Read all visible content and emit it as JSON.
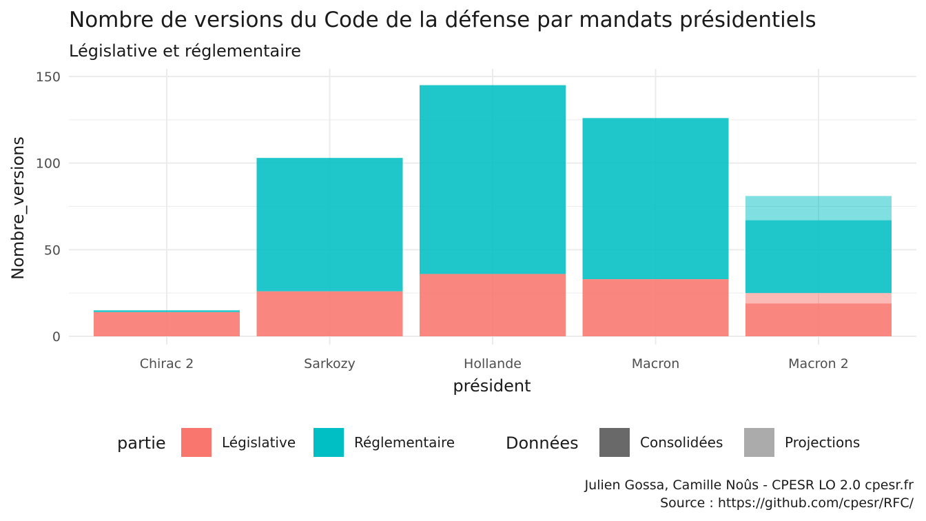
{
  "chart_data": {
    "type": "bar",
    "stacked": true,
    "title": "Nombre de versions du Code de la défense par mandats présidentiels",
    "subtitle": "Législative et réglementaire",
    "xlabel": "président",
    "ylabel": "Nombre_versions",
    "ylim": [
      0,
      150
    ],
    "yticks": [
      0,
      50,
      100,
      150
    ],
    "categories": [
      "Chirac 2",
      "Sarkozy",
      "Hollande",
      "Macron",
      "Macron 2"
    ],
    "series": [
      {
        "name": "Législative",
        "data_type": "Consolidées",
        "color": "#F8766D",
        "values": [
          14,
          26,
          36,
          33,
          19
        ]
      },
      {
        "name": "Législative",
        "data_type": "Projections",
        "color": "#F8766D",
        "values": [
          0,
          0,
          0,
          0,
          6
        ]
      },
      {
        "name": "Réglementaire",
        "data_type": "Consolidées",
        "color": "#00BFC4",
        "values": [
          1,
          77,
          109,
          93,
          42
        ]
      },
      {
        "name": "Réglementaire",
        "data_type": "Projections",
        "color": "#00BFC4",
        "values": [
          0,
          0,
          0,
          0,
          14
        ]
      }
    ],
    "opacity": {
      "Consolidées": 0.88,
      "Projections": 0.5
    },
    "grid": true,
    "legend_position": "bottom",
    "legend": {
      "partie": {
        "title": "partie",
        "items": [
          {
            "label": "Législative",
            "color": "#F8766D"
          },
          {
            "label": "Réglementaire",
            "color": "#00BFC4"
          }
        ]
      },
      "donnees": {
        "title": "Données",
        "items": [
          {
            "label": "Consolidées",
            "color": "#696969"
          },
          {
            "label": "Projections",
            "color": "#ABABAB"
          }
        ]
      }
    },
    "caption": [
      "Julien Gossa, Camille Noûs - CPESR LO 2.0 cpesr.fr",
      "Source : https://github.com/cpesr/RFC/"
    ]
  }
}
